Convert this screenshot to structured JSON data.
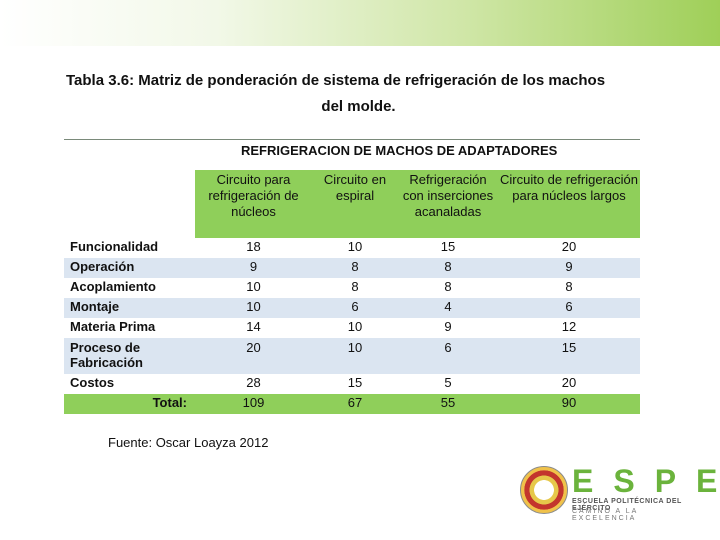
{
  "title": {
    "line1": "Tabla 3.6: Matriz de ponderación de sistema de refrigeración de los machos",
    "line2": "del molde."
  },
  "table": {
    "heading": "REFRIGERACION DE MACHOS DE ADAPTADORES",
    "columns": [
      "Circuito para refrigeración de núcleos",
      "Circuito en espiral",
      "Refrigeración con inserciones acanaladas",
      "Circuito de refrigeración para núcleos largos"
    ],
    "rows": [
      {
        "label": "Funcionalidad",
        "values": [
          "18",
          "10",
          "15",
          "20"
        ]
      },
      {
        "label": "Operación",
        "values": [
          "9",
          "8",
          "8",
          "9"
        ]
      },
      {
        "label": "Acoplamiento",
        "values": [
          "10",
          "8",
          "8",
          "8"
        ]
      },
      {
        "label": "Montaje",
        "values": [
          "10",
          "6",
          "4",
          "6"
        ]
      },
      {
        "label": "Materia Prima",
        "values": [
          "14",
          "10",
          "9",
          "12"
        ]
      },
      {
        "label": "Proceso de Fabricación",
        "values": [
          "20",
          "10",
          "6",
          "15"
        ]
      },
      {
        "label": "Costos",
        "values": [
          "28",
          "15",
          "5",
          "20"
        ]
      }
    ],
    "total": {
      "label": "Total:",
      "values": [
        "109",
        "67",
        "55",
        "90"
      ]
    }
  },
  "source": "Fuente: Oscar Loayza 2012",
  "logo": {
    "letters": "ESPE",
    "line1": "ESCUELA POLITÉCNICA DEL EJÉRCITO",
    "line2": "CAMINO A LA EXCELENCIA"
  },
  "colors": {
    "header_green": "#8fcf5a",
    "row_blue": "#dbe5f1",
    "logo_green": "#6bb33c"
  }
}
